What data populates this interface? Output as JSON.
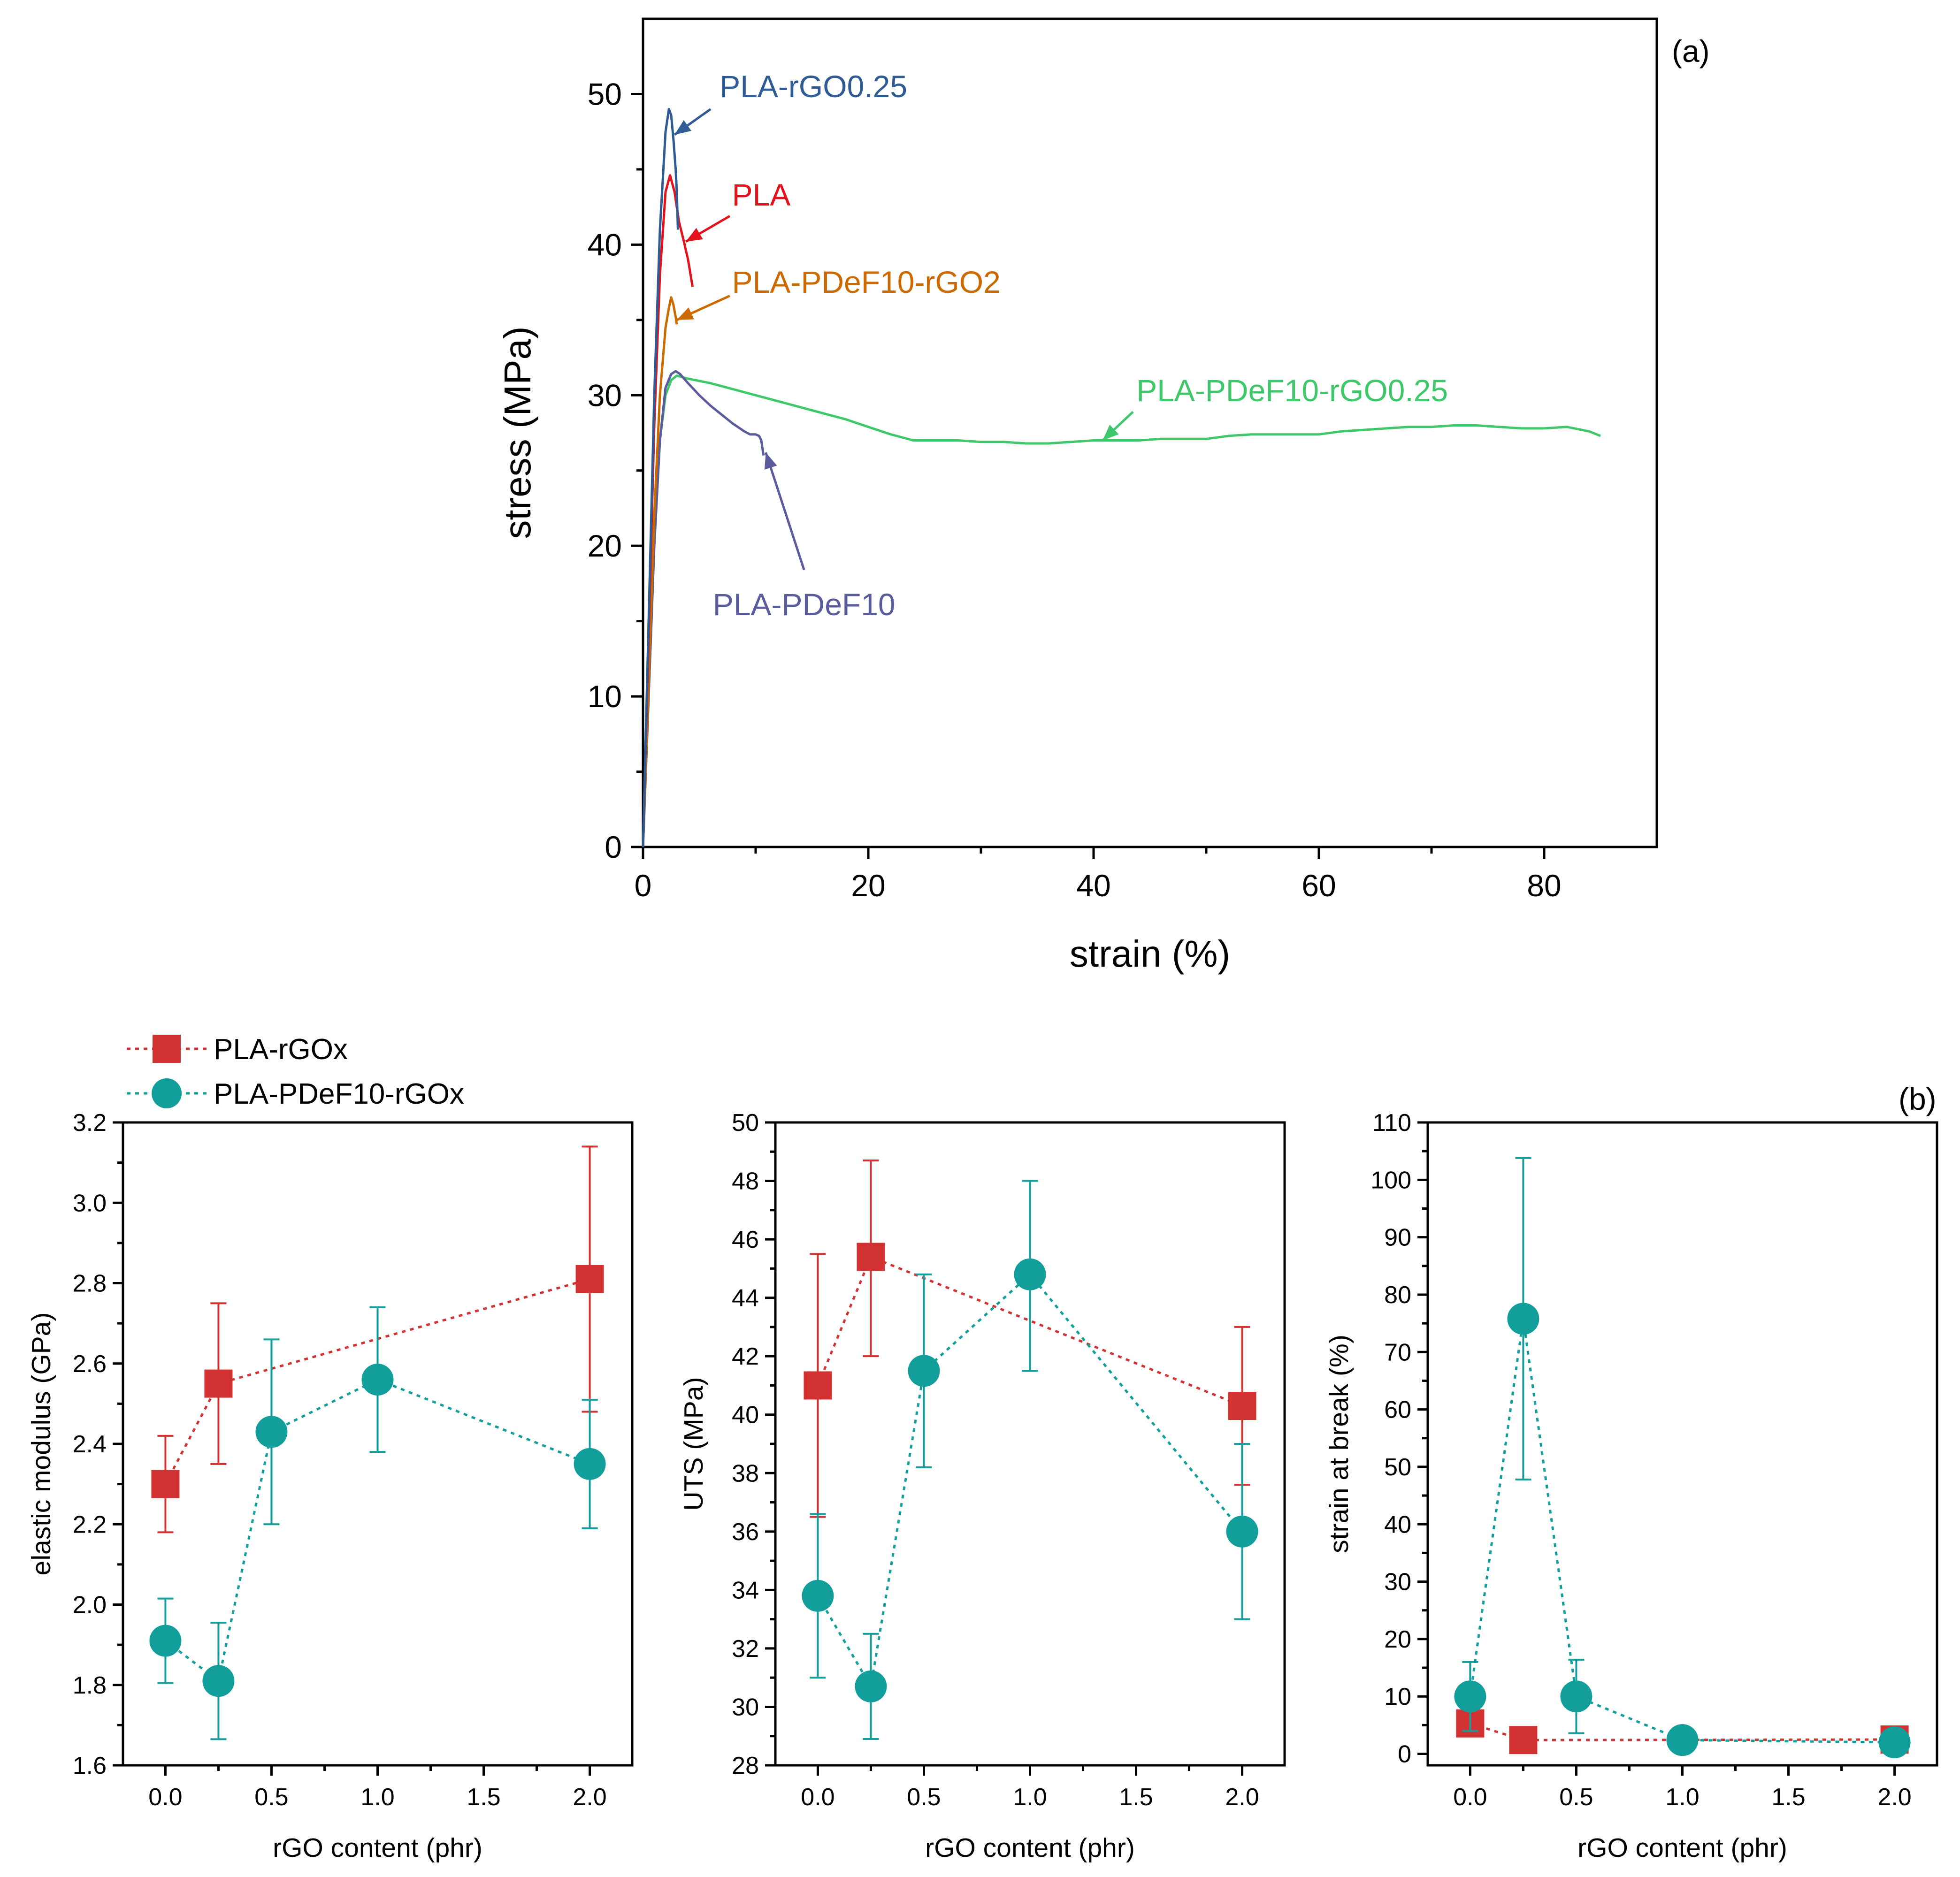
{
  "panel_labels": {
    "a": "(a)",
    "b": "(b)"
  },
  "colors": {
    "pla_rgo025": "#2f5c95",
    "pla": "#e3121b",
    "pla_pdef10_rgo2": "#cc6a00",
    "pla_pdef10_rgo025": "#3ec86a",
    "pla_pdef10": "#5a5c9c",
    "red_series": "#d23232",
    "teal_series": "#129e9a"
  },
  "legend": {
    "series1": "PLA-rGOx",
    "series2": "PLA-PDeF10-rGOx"
  },
  "chart_data": [
    {
      "type": "line",
      "id": "a",
      "xlabel": "strain (%)",
      "ylabel": "stress (MPa)",
      "xlim": [
        0,
        90
      ],
      "ylim": [
        0,
        55
      ],
      "xticks": [
        0,
        20,
        40,
        60,
        80
      ],
      "yticks": [
        0,
        10,
        20,
        30,
        40,
        50
      ],
      "series": [
        {
          "name": "PLA-rGO0.25",
          "color_key": "pla_rgo025",
          "x": [
            0,
            0.5,
            1.0,
            1.5,
            2.0,
            2.3,
            2.5,
            2.7,
            2.9,
            3.0,
            3.1
          ],
          "y": [
            0,
            15,
            30,
            41,
            47.5,
            49.0,
            48.6,
            47.0,
            45.0,
            43.5,
            41.0
          ]
        },
        {
          "name": "PLA",
          "color_key": "pla",
          "x": [
            0,
            0.5,
            1.0,
            1.5,
            2.0,
            2.4,
            2.8,
            3.2,
            3.6,
            4.0,
            4.4
          ],
          "y": [
            0,
            14,
            28,
            38,
            43.5,
            44.6,
            43.5,
            41.5,
            40.3,
            39.0,
            37.2
          ]
        },
        {
          "name": "PLA-PDeF10-rGO2",
          "color_key": "pla_pdef10_rgo2",
          "x": [
            0,
            0.5,
            1.0,
            1.5,
            2.0,
            2.3,
            2.5,
            2.7,
            2.9,
            3.0
          ],
          "y": [
            0,
            11,
            22,
            30,
            34.5,
            35.8,
            36.5,
            36.0,
            35.2,
            34.7
          ]
        },
        {
          "name": "PLA-PDeF10-rGO0.25",
          "color_key": "pla_pdef10_rgo025",
          "x": [
            0,
            0.5,
            1.0,
            1.5,
            2.0,
            2.5,
            3.0,
            4,
            6,
            8,
            10,
            12,
            14,
            16,
            18,
            20,
            22,
            24,
            26,
            28,
            30,
            32,
            34,
            36,
            38,
            40,
            42,
            44,
            46,
            48,
            50,
            52,
            54,
            56,
            58,
            60,
            62,
            64,
            66,
            68,
            70,
            72,
            74,
            76,
            78,
            80,
            82,
            84,
            85
          ],
          "y": [
            0,
            10,
            20,
            27,
            30,
            31.0,
            31.3,
            31.1,
            30.8,
            30.4,
            30.0,
            29.6,
            29.2,
            28.8,
            28.4,
            27.9,
            27.4,
            27.0,
            27.0,
            27.0,
            26.9,
            26.9,
            26.8,
            26.8,
            26.9,
            27.0,
            27.0,
            27.0,
            27.1,
            27.1,
            27.1,
            27.3,
            27.4,
            27.4,
            27.4,
            27.4,
            27.6,
            27.7,
            27.8,
            27.9,
            27.9,
            28.0,
            28.0,
            27.9,
            27.8,
            27.8,
            27.9,
            27.6,
            27.3
          ]
        },
        {
          "name": "PLA-PDeF10",
          "color_key": "pla_pdef10",
          "x": [
            0,
            0.5,
            1.0,
            1.5,
            2.0,
            2.5,
            2.9,
            3.3,
            4,
            5,
            6,
            7,
            8,
            9,
            9.5,
            10,
            10.3,
            10.5,
            10.7
          ],
          "y": [
            0,
            10,
            20,
            27,
            30.5,
            31.4,
            31.6,
            31.4,
            30.8,
            30.0,
            29.3,
            28.7,
            28.1,
            27.6,
            27.4,
            27.4,
            27.3,
            27.0,
            26.0
          ]
        }
      ],
      "annotations": [
        {
          "text": "PLA-rGO0.25",
          "color_key": "pla_rgo025"
        },
        {
          "text": "PLA",
          "color_key": "pla"
        },
        {
          "text": "PLA-PDeF10-rGO2",
          "color_key": "pla_pdef10_rgo2"
        },
        {
          "text": "PLA-PDeF10-rGO0.25",
          "color_key": "pla_pdef10_rgo025"
        },
        {
          "text": "PLA-PDeF10",
          "color_key": "pla_pdef10"
        }
      ]
    },
    {
      "type": "scatter",
      "id": "b1",
      "xlabel": "rGO content (phr)",
      "ylabel": "elastic modulus (GPa)",
      "xlim": [
        -0.2,
        2.2
      ],
      "ylim": [
        1.6,
        3.2
      ],
      "xticks": [
        "0.0",
        "0.5",
        "1.0",
        "1.5",
        "2.0"
      ],
      "yticks": [
        "1.6",
        "1.8",
        "2.0",
        "2.2",
        "2.4",
        "2.6",
        "2.8",
        "3.0",
        "3.2"
      ],
      "series": [
        {
          "name": "PLA-rGOx",
          "marker": "square",
          "color_key": "red_series",
          "x": [
            0,
            0.25,
            2.0
          ],
          "y": [
            2.3,
            2.55,
            2.81
          ],
          "err_low": [
            2.18,
            2.35,
            2.48
          ],
          "err_high": [
            2.42,
            2.75,
            3.14
          ]
        },
        {
          "name": "PLA-PDeF10-rGOx",
          "marker": "circle",
          "color_key": "teal_series",
          "x": [
            0,
            0.25,
            0.5,
            1.0,
            2.0
          ],
          "y": [
            1.91,
            1.81,
            2.43,
            2.56,
            2.35
          ],
          "err_low": [
            1.805,
            1.665,
            2.2,
            2.38,
            2.19
          ],
          "err_high": [
            2.015,
            1.955,
            2.66,
            2.74,
            2.51
          ]
        }
      ]
    },
    {
      "type": "scatter",
      "id": "b2",
      "xlabel": "rGO content (phr)",
      "ylabel": "UTS (MPa)",
      "xlim": [
        -0.2,
        2.2
      ],
      "ylim": [
        28,
        50
      ],
      "xticks": [
        "0.0",
        "0.5",
        "1.0",
        "1.5",
        "2.0"
      ],
      "yticks": [
        "28",
        "30",
        "32",
        "34",
        "36",
        "38",
        "40",
        "42",
        "44",
        "46",
        "48",
        "50"
      ],
      "series": [
        {
          "name": "PLA-rGOx",
          "marker": "square",
          "color_key": "red_series",
          "x": [
            0,
            0.25,
            2.0
          ],
          "y": [
            41.0,
            45.4,
            40.3
          ],
          "err_low": [
            36.5,
            42.0,
            37.6
          ],
          "err_high": [
            45.5,
            48.7,
            43.0
          ]
        },
        {
          "name": "PLA-PDeF10-rGOx",
          "marker": "circle",
          "color_key": "teal_series",
          "x": [
            0,
            0.25,
            0.5,
            1.0,
            2.0
          ],
          "y": [
            33.8,
            30.7,
            41.5,
            44.8,
            36.0
          ],
          "err_low": [
            31.0,
            28.9,
            38.2,
            41.5,
            33.0
          ],
          "err_high": [
            36.6,
            32.5,
            44.8,
            48.0,
            39.0
          ]
        }
      ]
    },
    {
      "type": "scatter",
      "id": "b3",
      "xlabel": "rGO content (phr)",
      "ylabel": "strain at break (%)",
      "xlim": [
        -0.2,
        2.2
      ],
      "ylim": [
        -2,
        110
      ],
      "xticks": [
        "0.0",
        "0.5",
        "1.0",
        "1.5",
        "2.0"
      ],
      "yticks": [
        "0",
        "10",
        "20",
        "30",
        "40",
        "50",
        "60",
        "70",
        "80",
        "90",
        "100",
        "110"
      ],
      "series": [
        {
          "name": "PLA-rGOx",
          "marker": "square",
          "color_key": "red_series",
          "x": [
            0,
            0.25,
            2.0
          ],
          "y": [
            5.3,
            2.4,
            2.5
          ],
          "err_low": [
            null,
            null,
            null
          ],
          "err_high": [
            null,
            null,
            null
          ]
        },
        {
          "name": "PLA-PDeF10-rGOx",
          "marker": "circle",
          "color_key": "teal_series",
          "x": [
            0,
            0.25,
            0.5,
            1.0,
            2.0
          ],
          "y": [
            10.0,
            75.8,
            10.0,
            2.4,
            2.0
          ],
          "err_low": [
            4.0,
            47.8,
            3.6,
            null,
            null
          ],
          "err_high": [
            16.0,
            103.8,
            16.4,
            null,
            null
          ]
        }
      ]
    }
  ]
}
